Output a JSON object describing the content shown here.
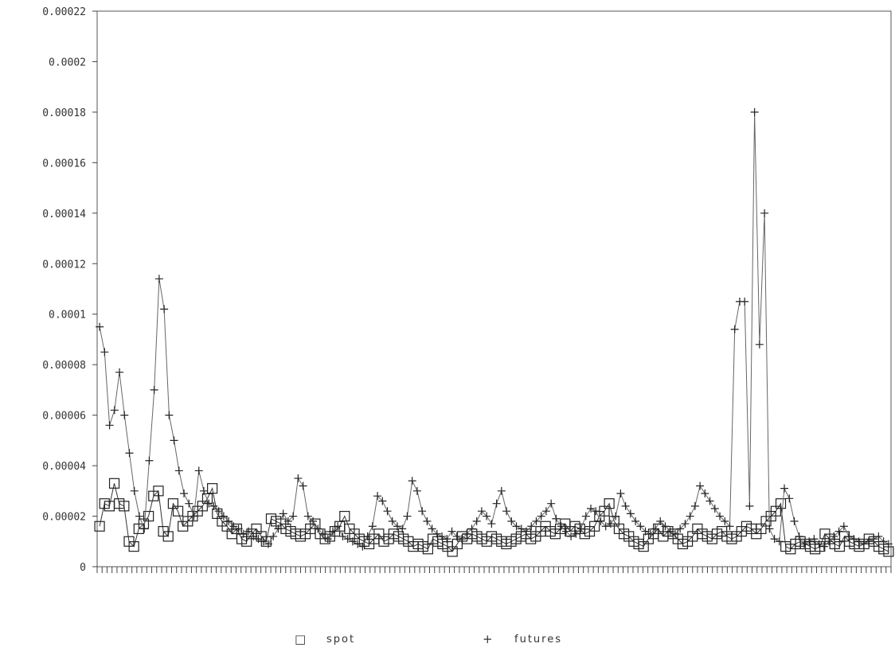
{
  "chart_data": {
    "type": "line",
    "title": "",
    "xlabel": "",
    "ylabel": "",
    "ylim": [
      0,
      0.00022
    ],
    "y_ticks": [
      0,
      2e-05,
      4e-05,
      6e-05,
      8e-05,
      0.0001,
      0.00012,
      0.00014,
      0.00016,
      0.00018,
      0.0002,
      0.00022
    ],
    "y_tick_labels": [
      "0",
      "0.00002",
      "0.00004",
      "0.00006",
      "0.00008",
      "0.0001",
      "0.00012",
      "0.00014",
      "0.00016",
      "0.00018",
      "0.0002",
      "0.00022"
    ],
    "x_tick_count": 160,
    "grid": false,
    "legend_position": "bottom",
    "series": [
      {
        "name": "spot",
        "marker": "square",
        "values": [
          1.6e-05,
          2.5e-05,
          2.4e-05,
          3.3e-05,
          2.5e-05,
          2.4e-05,
          1e-05,
          8e-06,
          1.5e-05,
          1.7e-05,
          2e-05,
          2.8e-05,
          3e-05,
          1.4e-05,
          1.2e-05,
          2.5e-05,
          2.2e-05,
          1.6e-05,
          1.8e-05,
          2e-05,
          2.2e-05,
          2.4e-05,
          2.7e-05,
          3.1e-05,
          2.1e-05,
          1.8e-05,
          1.6e-05,
          1.3e-05,
          1.5e-05,
          1.1e-05,
          1e-05,
          1.3e-05,
          1.5e-05,
          1.2e-05,
          1e-05,
          1.9e-05,
          1.8e-05,
          1.7e-05,
          1.5e-05,
          1.4e-05,
          1.3e-05,
          1.2e-05,
          1.3e-05,
          1.5e-05,
          1.7e-05,
          1.3e-05,
          1.1e-05,
          1.2e-05,
          1.4e-05,
          1.6e-05,
          2e-05,
          1.5e-05,
          1.3e-05,
          1.1e-05,
          1e-05,
          9e-06,
          1.1e-05,
          1.3e-05,
          1e-05,
          1.1e-05,
          1.3e-05,
          1.2e-05,
          1.1e-05,
          1e-05,
          8e-06,
          9e-06,
          8e-06,
          7e-06,
          1.1e-05,
          1e-05,
          9e-06,
          8e-06,
          6e-06,
          9e-06,
          1.2e-05,
          1.1e-05,
          1.3e-05,
          1.2e-05,
          1.1e-05,
          1e-05,
          1.2e-05,
          1.1e-05,
          1e-05,
          9e-06,
          1e-05,
          1.1e-05,
          1.2e-05,
          1.3e-05,
          1.1e-05,
          1.2e-05,
          1.4e-05,
          1.6e-05,
          1.4e-05,
          1.3e-05,
          1.5e-05,
          1.7e-05,
          1.4e-05,
          1.6e-05,
          1.5e-05,
          1.3e-05,
          1.4e-05,
          1.6e-05,
          2e-05,
          2.2e-05,
          2.5e-05,
          1.8e-05,
          1.5e-05,
          1.3e-05,
          1.2e-05,
          1e-05,
          9e-06,
          8e-06,
          1.1e-05,
          1.3e-05,
          1.5e-05,
          1.2e-05,
          1.4e-05,
          1.3e-05,
          1.1e-05,
          9e-06,
          1e-05,
          1.2e-05,
          1.5e-05,
          1.3e-05,
          1.2e-05,
          1.1e-05,
          1.3e-05,
          1.4e-05,
          1.2e-05,
          1.1e-05,
          1.2e-05,
          1.4e-05,
          1.6e-05,
          1.5e-05,
          1.3e-05,
          1.5e-05,
          1.8e-05,
          2e-05,
          2.2e-05,
          2.5e-05,
          8e-06,
          7e-06,
          9e-06,
          1e-05,
          9e-06,
          8e-06,
          7e-06,
          8e-06,
          1.3e-05,
          1.1e-05,
          9e-06,
          8e-06,
          1.2e-05,
          1e-05,
          9e-06,
          8e-06,
          9e-06,
          1.1e-05,
          1e-05,
          8e-06,
          7e-06,
          6e-06
        ]
      },
      {
        "name": "futures",
        "marker": "plus",
        "values": [
          9.5e-05,
          8.5e-05,
          5.6e-05,
          6.2e-05,
          7.7e-05,
          6e-05,
          4.5e-05,
          3e-05,
          2e-05,
          1.5e-05,
          4.2e-05,
          7e-05,
          0.000114,
          0.000102,
          6e-05,
          5e-05,
          3.8e-05,
          2.9e-05,
          2.5e-05,
          2e-05,
          3.8e-05,
          3e-05,
          2.5e-05,
          2.4e-05,
          2.2e-05,
          2e-05,
          1.8e-05,
          1.6e-05,
          1.5e-05,
          1.3e-05,
          1.4e-05,
          1.2e-05,
          1.1e-05,
          1e-05,
          9e-06,
          1.2e-05,
          1.5e-05,
          2.1e-05,
          1.8e-05,
          2e-05,
          3.5e-05,
          3.2e-05,
          2e-05,
          1.8e-05,
          1.5e-05,
          1.3e-05,
          1.1e-05,
          1.4e-05,
          1.6e-05,
          1.2e-05,
          1.1e-05,
          1e-05,
          9e-06,
          8e-06,
          1.2e-05,
          1.6e-05,
          2.8e-05,
          2.6e-05,
          2.2e-05,
          1.8e-05,
          1.6e-05,
          1.5e-05,
          2e-05,
          3.4e-05,
          3e-05,
          2.2e-05,
          1.8e-05,
          1.5e-05,
          1.3e-05,
          1.2e-05,
          1.1e-05,
          1.4e-05,
          1.2e-05,
          1.1e-05,
          1.3e-05,
          1.5e-05,
          1.8e-05,
          2.2e-05,
          2e-05,
          1.7e-05,
          2.5e-05,
          3e-05,
          2.2e-05,
          1.8e-05,
          1.6e-05,
          1.5e-05,
          1.4e-05,
          1.6e-05,
          1.8e-05,
          2e-05,
          2.2e-05,
          2.5e-05,
          1.9e-05,
          1.6e-05,
          1.4e-05,
          1.2e-05,
          1.3e-05,
          1.5e-05,
          2e-05,
          2.3e-05,
          2.2e-05,
          1.8e-05,
          1.6e-05,
          1.7e-05,
          2e-05,
          2.9e-05,
          2.4e-05,
          2.1e-05,
          1.8e-05,
          1.6e-05,
          1.4e-05,
          1.3e-05,
          1.5e-05,
          1.8e-05,
          1.6e-05,
          1.4e-05,
          1.3e-05,
          1.5e-05,
          1.7e-05,
          2e-05,
          2.4e-05,
          3.2e-05,
          2.9e-05,
          2.6e-05,
          2.3e-05,
          2e-05,
          1.8e-05,
          1.6e-05,
          9.4e-05,
          0.000105,
          0.000105,
          2.4e-05,
          0.00018,
          8.8e-05,
          0.00014,
          1.5e-05,
          1.1e-05,
          1e-05,
          3.1e-05,
          2.7e-05,
          1.8e-05,
          1.2e-05,
          9e-06,
          1e-05,
          1.1e-05,
          9e-06,
          8e-06,
          1e-05,
          1.2e-05,
          1.4e-05,
          1.6e-05,
          1.2e-05,
          1.1e-05,
          1e-05,
          9e-06,
          1e-05,
          1.1e-05,
          1.2e-05,
          1e-05,
          9e-06
        ]
      }
    ]
  },
  "legend": {
    "spot_symbol": "□",
    "spot_label": "spot",
    "futures_symbol": "+",
    "futures_label": "futures"
  }
}
